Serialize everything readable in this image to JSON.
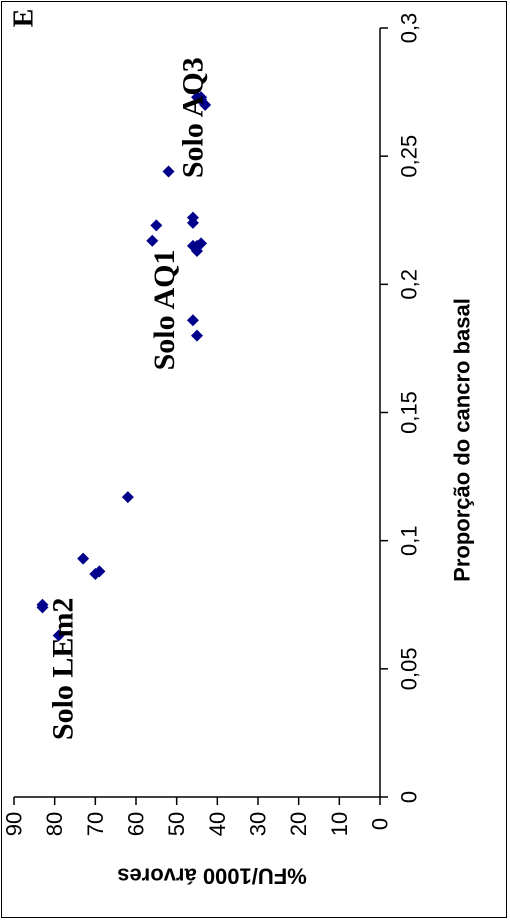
{
  "chart_data": {
    "type": "scatter",
    "panel_label": "E",
    "xlabel": "Proporção do cancro basal",
    "ylabel": "%FU/1000 árvores",
    "xlim": [
      0,
      0.3
    ],
    "ylim": [
      0,
      90
    ],
    "x_ticks": [
      "0",
      "0,05",
      "0,1",
      "0,15",
      "0,2",
      "0,25",
      "0,3"
    ],
    "y_ticks": [
      "0",
      "10",
      "20",
      "30",
      "40",
      "50",
      "60",
      "70",
      "80",
      "90"
    ],
    "grid": false,
    "marker_color": "#00008B",
    "annotations": [
      {
        "text": "Solo LEm2",
        "x": 0.05,
        "y": 78
      },
      {
        "text": "Solo AQ1",
        "x": 0.19,
        "y": 53
      },
      {
        "text": "Solo AQ3",
        "x": 0.265,
        "y": 46
      }
    ],
    "series": [
      {
        "points": [
          {
            "x": 0.063,
            "y": 79
          },
          {
            "x": 0.074,
            "y": 83
          },
          {
            "x": 0.075,
            "y": 83
          },
          {
            "x": 0.087,
            "y": 70
          },
          {
            "x": 0.088,
            "y": 69
          },
          {
            "x": 0.093,
            "y": 73
          },
          {
            "x": 0.117,
            "y": 62
          },
          {
            "x": 0.18,
            "y": 45
          },
          {
            "x": 0.186,
            "y": 46
          },
          {
            "x": 0.213,
            "y": 45
          },
          {
            "x": 0.215,
            "y": 46
          },
          {
            "x": 0.215,
            "y": 45
          },
          {
            "x": 0.216,
            "y": 44
          },
          {
            "x": 0.217,
            "y": 56
          },
          {
            "x": 0.223,
            "y": 55
          },
          {
            "x": 0.224,
            "y": 46
          },
          {
            "x": 0.226,
            "y": 46
          },
          {
            "x": 0.244,
            "y": 52
          },
          {
            "x": 0.27,
            "y": 43
          },
          {
            "x": 0.272,
            "y": 44
          },
          {
            "x": 0.273,
            "y": 45
          },
          {
            "x": 0.273,
            "y": 44
          }
        ]
      }
    ]
  }
}
